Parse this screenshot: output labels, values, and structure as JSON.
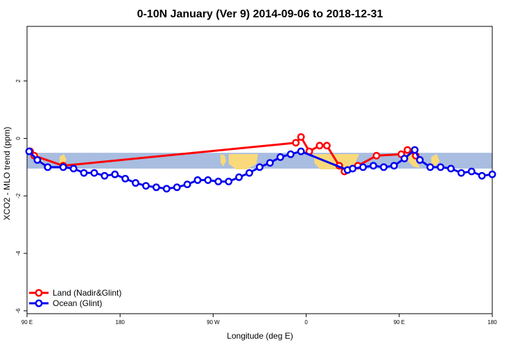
{
  "chart_data": {
    "type": "line",
    "title": "0-10N January (Ver 9)   2014-09-06 to 2018-12-31",
    "xlabel": "Longitude (deg E)",
    "ylabel": "XCO2 - MLO trend (ppm)",
    "x_ticks": [
      {
        "value": 90,
        "label": "90 E"
      },
      {
        "value": 180,
        "label": "180"
      },
      {
        "value": 270,
        "label": "90 W"
      },
      {
        "value": 360,
        "label": "0"
      },
      {
        "value": 450,
        "label": "90 E"
      },
      {
        "value": 540,
        "label": "180"
      }
    ],
    "y_ticks": [
      {
        "value": 2,
        "label": "2"
      },
      {
        "value": 0,
        "label": "0"
      },
      {
        "value": -2,
        "label": "-2"
      },
      {
        "value": -4,
        "label": "-4"
      },
      {
        "value": -6,
        "label": "-6"
      }
    ],
    "xlim": [
      90,
      540
    ],
    "ylim": [
      -6.1,
      3.9
    ],
    "band": {
      "ymin": -1.05,
      "ymax": -0.5,
      "color": "#a8bde0",
      "land_color": "#f9d97a"
    },
    "series": [
      {
        "name": "Land (Nadir&Glint)",
        "color": "#ff0000",
        "x": [
          93,
          97,
          125,
          350,
          355,
          363,
          373,
          380,
          392,
          397,
          410,
          428,
          452,
          458,
          466
        ],
        "y": [
          -0.45,
          -0.6,
          -0.95,
          -0.15,
          0.05,
          -0.45,
          -0.25,
          -0.25,
          -0.95,
          -1.15,
          -0.95,
          -0.6,
          -0.55,
          -0.4,
          -0.6
        ]
      },
      {
        "name": "Ocean (Glint)",
        "color": "#0000ee",
        "x": [
          92,
          100,
          110,
          125,
          135,
          145,
          155,
          165,
          175,
          185,
          195,
          205,
          215,
          225,
          235,
          245,
          255,
          265,
          275,
          285,
          295,
          305,
          315,
          325,
          335,
          345,
          355,
          400,
          405,
          415,
          425,
          435,
          445,
          455,
          465,
          470,
          480,
          490,
          500,
          510,
          520,
          530,
          540
        ],
        "y": [
          -0.45,
          -0.75,
          -1.0,
          -1.0,
          -1.05,
          -1.2,
          -1.2,
          -1.3,
          -1.25,
          -1.4,
          -1.55,
          -1.65,
          -1.7,
          -1.75,
          -1.7,
          -1.6,
          -1.45,
          -1.45,
          -1.5,
          -1.5,
          -1.35,
          -1.2,
          -1.0,
          -0.85,
          -0.65,
          -0.55,
          -0.45,
          -1.1,
          -1.05,
          -1.0,
          -0.95,
          -1.0,
          -0.95,
          -0.7,
          -0.4,
          -0.75,
          -1.0,
          -1.0,
          -1.05,
          -1.2,
          -1.15,
          -1.3,
          -1.25
        ]
      }
    ],
    "legend": {
      "position": "bottom-left",
      "entries": [
        "Land (Nadir&Glint)",
        "Ocean (Glint)"
      ]
    }
  }
}
